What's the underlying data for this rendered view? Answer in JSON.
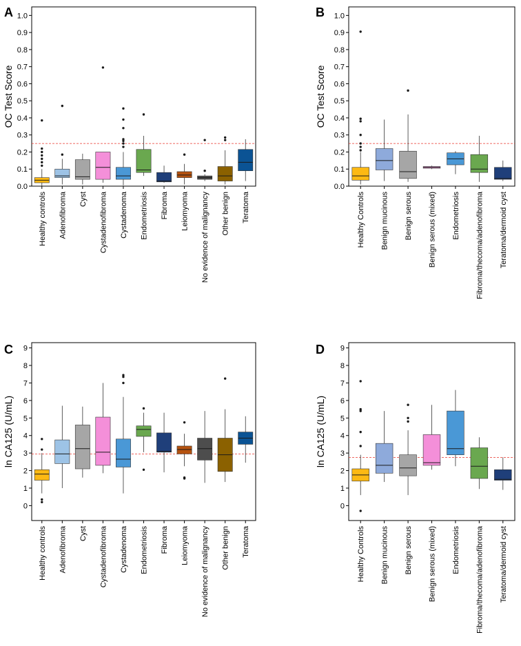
{
  "figure": {
    "panels": [
      "A",
      "B",
      "C",
      "D"
    ]
  },
  "chart_data": [
    {
      "id": "A",
      "type": "boxplot",
      "title": "",
      "xlabel": "",
      "ylabel": "OC Test Score",
      "ylim": [
        0,
        1.0
      ],
      "yticks": [
        0.0,
        0.1,
        0.2,
        0.3,
        0.4,
        0.5,
        0.6,
        0.7,
        0.8,
        0.9,
        1.0
      ],
      "ytick_labels": [
        "0.0",
        "0.1",
        "0.2",
        "0.3",
        "0.4",
        "0.5",
        "0.6",
        "0.7",
        "0.8",
        "0.9",
        "1.0"
      ],
      "reference_line": 0.25,
      "reference_color": "#e8342a",
      "categories": [
        "Healthy controls",
        "Adenofibroma",
        "Cyst",
        "Cystadenofibroma",
        "Cystadenoma",
        "Endometriosis",
        "Fibroma",
        "Leiomyoma",
        "No evidence of malignancy",
        "Other benign",
        "Teratoma"
      ],
      "series": [
        {
          "name": "Healthy controls",
          "color": "#fdb913",
          "min": 0.0,
          "q1": 0.02,
          "median": 0.035,
          "q3": 0.05,
          "max": 0.1,
          "outliers": [
            0.12,
            0.14,
            0.16,
            0.18,
            0.2,
            0.22,
            0.385
          ]
        },
        {
          "name": "Adenofibroma",
          "color": "#9dc3e6",
          "min": 0.01,
          "q1": 0.05,
          "median": 0.06,
          "q3": 0.1,
          "max": 0.16,
          "outliers": [
            0.185,
            0.47
          ]
        },
        {
          "name": "Cyst",
          "color": "#a6a6a6",
          "min": 0.01,
          "q1": 0.04,
          "median": 0.055,
          "q3": 0.155,
          "max": 0.19,
          "outliers": []
        },
        {
          "name": "Cystadenofibroma",
          "color": "#f48fd9",
          "min": 0.02,
          "q1": 0.04,
          "median": 0.11,
          "q3": 0.2,
          "max": 0.2,
          "outliers": [
            0.695
          ]
        },
        {
          "name": "Cystadenoma",
          "color": "#4a98d6",
          "min": 0.005,
          "q1": 0.04,
          "median": 0.06,
          "q3": 0.11,
          "max": 0.2,
          "outliers": [
            0.23,
            0.25,
            0.265,
            0.275,
            0.34,
            0.39,
            0.455
          ]
        },
        {
          "name": "Endometriosis",
          "color": "#6aa84f",
          "min": 0.06,
          "q1": 0.08,
          "median": 0.095,
          "q3": 0.215,
          "max": 0.295,
          "outliers": [
            0.42
          ]
        },
        {
          "name": "Fibroma",
          "color": "#1f3f7a",
          "min": 0.02,
          "q1": 0.025,
          "median": 0.03,
          "q3": 0.08,
          "max": 0.12,
          "outliers": []
        },
        {
          "name": "Leiomyoma",
          "color": "#b5520f",
          "min": 0.01,
          "q1": 0.05,
          "median": 0.065,
          "q3": 0.085,
          "max": 0.13,
          "outliers": [
            0.185
          ]
        },
        {
          "name": "No evidence of malignancy",
          "color": "#4d4d4d",
          "min": 0.03,
          "q1": 0.04,
          "median": 0.05,
          "q3": 0.06,
          "max": 0.07,
          "outliers": [
            0.09,
            0.27
          ]
        },
        {
          "name": "Other benign",
          "color": "#8b6100",
          "min": 0.01,
          "q1": 0.03,
          "median": 0.06,
          "q3": 0.115,
          "max": 0.21,
          "outliers": [
            0.27,
            0.285
          ]
        },
        {
          "name": "Teratoma",
          "color": "#0b5394",
          "min": 0.03,
          "q1": 0.09,
          "median": 0.14,
          "q3": 0.215,
          "max": 0.275,
          "outliers": []
        }
      ]
    },
    {
      "id": "B",
      "type": "boxplot",
      "title": "",
      "xlabel": "",
      "ylabel": "OC Test Score",
      "ylim": [
        0,
        1.0
      ],
      "yticks": [
        0.0,
        0.1,
        0.2,
        0.3,
        0.4,
        0.5,
        0.6,
        0.7,
        0.8,
        0.9,
        1.0
      ],
      "ytick_labels": [
        "0.0",
        "0.1",
        "0.2",
        "0.3",
        "0.4",
        "0.5",
        "0.6",
        "0.7",
        "0.8",
        "0.9",
        "1.0"
      ],
      "reference_line": 0.25,
      "reference_color": "#e8342a",
      "categories": [
        "Healthy Controls",
        "Benign mucinous",
        "Benign serous",
        "Benign serous (mixed)",
        "Endometriosis",
        "Fibroma/thecoma/adenofibroma",
        "Teratoma/dermoid cyst"
      ],
      "series": [
        {
          "name": "Healthy Controls",
          "color": "#fdb913",
          "min": 0.01,
          "q1": 0.035,
          "median": 0.06,
          "q3": 0.11,
          "max": 0.2,
          "outliers": [
            0.21,
            0.23,
            0.25,
            0.3,
            0.38,
            0.395,
            0.905
          ]
        },
        {
          "name": "Benign mucinous",
          "color": "#8eaadb",
          "min": 0.03,
          "q1": 0.095,
          "median": 0.15,
          "q3": 0.22,
          "max": 0.39,
          "outliers": []
        },
        {
          "name": "Benign serous",
          "color": "#a6a6a6",
          "min": 0.025,
          "q1": 0.045,
          "median": 0.085,
          "q3": 0.205,
          "max": 0.42,
          "outliers": [
            0.56
          ]
        },
        {
          "name": "Benign serous (mixed)",
          "color": "#f48fd9",
          "min": 0.1,
          "q1": 0.105,
          "median": 0.11,
          "q3": 0.115,
          "max": 0.12,
          "outliers": []
        },
        {
          "name": "Endometriosis",
          "color": "#4a98d6",
          "min": 0.07,
          "q1": 0.125,
          "median": 0.16,
          "q3": 0.195,
          "max": 0.205,
          "outliers": []
        },
        {
          "name": "Fibroma/thecoma/adenofibroma",
          "color": "#6aa84f",
          "min": 0.025,
          "q1": 0.08,
          "median": 0.1,
          "q3": 0.185,
          "max": 0.295,
          "outliers": []
        },
        {
          "name": "Teratoma/dermoid cyst",
          "color": "#1f3f7a",
          "min": 0.03,
          "q1": 0.04,
          "median": 0.045,
          "q3": 0.11,
          "max": 0.15,
          "outliers": []
        }
      ]
    },
    {
      "id": "C",
      "type": "boxplot",
      "title": "",
      "xlabel": "",
      "ylabel": "ln CA125 (U/mL)",
      "ylim": [
        -1,
        9
      ],
      "yticks": [
        0,
        1,
        2,
        3,
        4,
        5,
        6,
        7,
        8,
        9
      ],
      "ytick_labels": [
        "0",
        "1",
        "2",
        "3",
        "4",
        "5",
        "6",
        "7",
        "8",
        "9"
      ],
      "reference_line": 2.95,
      "reference_color": "#e8342a",
      "categories": [
        "Healthy controls",
        "Adenofibroma",
        "Cyst",
        "Cystadenofibroma",
        "Cystadenoma",
        "Endometriosis",
        "Fibroma",
        "Leiomyoma",
        "No evidence of malignancy",
        "Other benign",
        "Teratoma"
      ],
      "series": [
        {
          "name": "Healthy controls",
          "color": "#fdb913",
          "min": 0.7,
          "q1": 1.45,
          "median": 1.8,
          "q3": 2.05,
          "max": 3.0,
          "outliers": [
            0.2,
            0.35,
            3.2,
            3.8
          ]
        },
        {
          "name": "Adenofibroma",
          "color": "#9dc3e6",
          "min": 1.0,
          "q1": 2.4,
          "median": 2.95,
          "q3": 3.75,
          "max": 5.7,
          "outliers": []
        },
        {
          "name": "Cyst",
          "color": "#a6a6a6",
          "min": 1.6,
          "q1": 2.1,
          "median": 3.25,
          "q3": 4.6,
          "max": 5.65,
          "outliers": []
        },
        {
          "name": "Cystadenofibroma",
          "color": "#f48fd9",
          "min": 1.85,
          "q1": 2.3,
          "median": 3.05,
          "q3": 5.05,
          "max": 7.0,
          "outliers": []
        },
        {
          "name": "Cystadenoma",
          "color": "#4a98d6",
          "min": 0.7,
          "q1": 2.2,
          "median": 2.65,
          "q3": 3.8,
          "max": 6.2,
          "outliers": [
            7.0,
            7.35,
            7.45
          ]
        },
        {
          "name": "Endometriosis",
          "color": "#6aa84f",
          "min": 3.05,
          "q1": 3.95,
          "median": 4.35,
          "q3": 4.55,
          "max": 5.3,
          "outliers": [
            2.05,
            5.55
          ]
        },
        {
          "name": "Fibroma",
          "color": "#1f3f7a",
          "min": 1.9,
          "q1": 3.05,
          "median": 3.1,
          "q3": 4.15,
          "max": 5.3,
          "outliers": []
        },
        {
          "name": "Leiomyoma",
          "color": "#b5520f",
          "min": 2.25,
          "q1": 2.95,
          "median": 3.2,
          "q3": 3.4,
          "max": 4.1,
          "outliers": [
            1.55,
            1.6,
            4.75
          ]
        },
        {
          "name": "No evidence of malignancy",
          "color": "#4d4d4d",
          "min": 1.3,
          "q1": 2.6,
          "median": 3.25,
          "q3": 3.85,
          "max": 5.4,
          "outliers": []
        },
        {
          "name": "Other benign",
          "color": "#8b6100",
          "min": 1.35,
          "q1": 1.95,
          "median": 2.9,
          "q3": 3.85,
          "max": 5.5,
          "outliers": [
            7.25
          ]
        },
        {
          "name": "Teratoma",
          "color": "#0b5394",
          "min": 2.45,
          "q1": 3.5,
          "median": 3.85,
          "q3": 4.2,
          "max": 5.1,
          "outliers": []
        }
      ]
    },
    {
      "id": "D",
      "type": "boxplot",
      "title": "",
      "xlabel": "",
      "ylabel": "ln CA125 (U/mL)",
      "ylim": [
        -1,
        9
      ],
      "yticks": [
        0,
        1,
        2,
        3,
        4,
        5,
        6,
        7,
        8,
        9
      ],
      "ytick_labels": [
        "0",
        "1",
        "2",
        "3",
        "4",
        "5",
        "6",
        "7",
        "8",
        "9"
      ],
      "reference_line": 2.75,
      "reference_color": "#e8342a",
      "categories": [
        "Healthy Controls",
        "Benign mucinous",
        "Benign serous",
        "Benign serous (mixed)",
        "Endometriosis",
        "Fibroma/thecoma/adenofibroma",
        "Teratoma/dermoid cyst"
      ],
      "series": [
        {
          "name": "Healthy Controls",
          "color": "#fdb913",
          "min": 0.6,
          "q1": 1.4,
          "median": 1.75,
          "q3": 2.1,
          "max": 2.9,
          "outliers": [
            -0.3,
            3.4,
            4.2,
            5.4,
            5.5,
            7.1
          ]
        },
        {
          "name": "Benign mucinous",
          "color": "#8eaadb",
          "min": 1.35,
          "q1": 1.85,
          "median": 2.3,
          "q3": 3.55,
          "max": 5.4,
          "outliers": []
        },
        {
          "name": "Benign serous",
          "color": "#a6a6a6",
          "min": 0.6,
          "q1": 1.7,
          "median": 2.15,
          "q3": 2.9,
          "max": 4.3,
          "outliers": [
            4.8,
            5.0,
            5.75
          ]
        },
        {
          "name": "Benign serous (mixed)",
          "color": "#f48fd9",
          "min": 2.05,
          "q1": 2.3,
          "median": 2.45,
          "q3": 4.05,
          "max": 5.75,
          "outliers": []
        },
        {
          "name": "Endometriosis",
          "color": "#4a98d6",
          "min": 2.25,
          "q1": 2.9,
          "median": 3.25,
          "q3": 5.4,
          "max": 6.6,
          "outliers": []
        },
        {
          "name": "Fibroma/thecoma/adenofibroma",
          "color": "#6aa84f",
          "min": 0.95,
          "q1": 1.55,
          "median": 2.25,
          "q3": 3.3,
          "max": 3.9,
          "outliers": []
        },
        {
          "name": "Teratoma/dermoid cyst",
          "color": "#1f3f7a",
          "min": 0.9,
          "q1": 1.45,
          "median": 1.5,
          "q3": 2.05,
          "max": 2.75,
          "outliers": []
        }
      ]
    }
  ]
}
